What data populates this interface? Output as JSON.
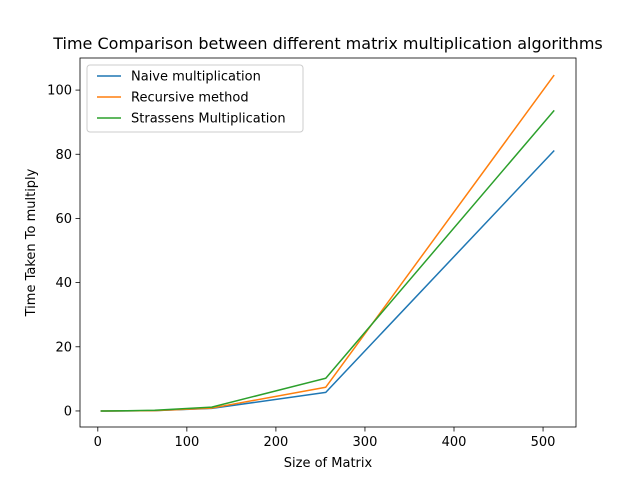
{
  "chart_data": {
    "type": "line",
    "title": "Time Comparison between different matrix multiplication algorithms",
    "xlabel": "Size of Matrix",
    "ylabel": "Time Taken To multiply",
    "xlim": [
      -20,
      537
    ],
    "ylim": [
      -5,
      110
    ],
    "xticks": [
      0,
      100,
      200,
      300,
      400,
      500
    ],
    "yticks": [
      0,
      20,
      40,
      60,
      80,
      100
    ],
    "grid": false,
    "legend_position": "upper-left",
    "x": [
      4,
      8,
      16,
      32,
      64,
      128,
      256,
      512
    ],
    "series": [
      {
        "name": "Naive multiplication",
        "color": "#1f77b4",
        "values": [
          0.0,
          0.0,
          0.0,
          0.02,
          0.12,
          0.8,
          5.8,
          81.0
        ]
      },
      {
        "name": "Recursive method",
        "color": "#ff7f0e",
        "values": [
          0.0,
          0.0,
          0.0,
          0.02,
          0.12,
          0.9,
          7.4,
          104.5
        ]
      },
      {
        "name": "Strassens Multiplication",
        "color": "#2ca02c",
        "values": [
          0.0,
          0.0,
          0.01,
          0.05,
          0.2,
          1.2,
          10.2,
          93.5
        ]
      }
    ]
  }
}
